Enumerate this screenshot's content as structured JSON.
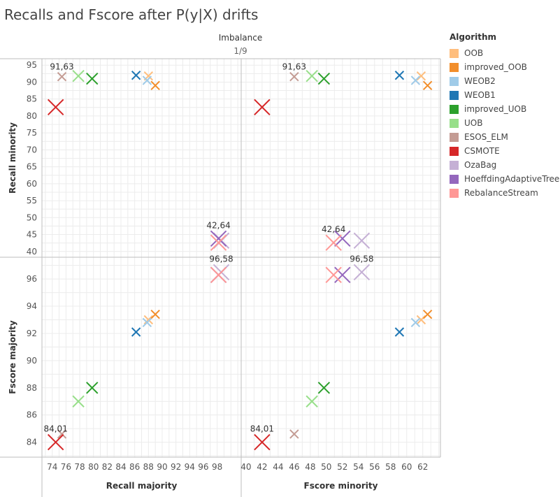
{
  "title": "Recalls and Fscore after P(y|X) drifts",
  "column_header": "Imbalance",
  "column_value": "1/9",
  "legend": {
    "title": "Algorithm",
    "items": [
      {
        "name": "OOB",
        "color": "#ffbe7d"
      },
      {
        "name": "improved_OOB",
        "color": "#f28e2b"
      },
      {
        "name": "WEOB2",
        "color": "#a0cbe8"
      },
      {
        "name": "WEOB1",
        "color": "#1f77b4"
      },
      {
        "name": "improved_UOB",
        "color": "#2ca02c"
      },
      {
        "name": "UOB",
        "color": "#98df8a"
      },
      {
        "name": "ESOS_ELM",
        "color": "#c49c94"
      },
      {
        "name": "CSMOTE",
        "color": "#d62728"
      },
      {
        "name": "OzaBag",
        "color": "#c5b0d5"
      },
      {
        "name": "HoeffdingAdaptiveTree",
        "color": "#9467bd"
      },
      {
        "name": "RebalanceStream",
        "color": "#ff9896"
      }
    ]
  },
  "chart_data": {
    "type": "scatter",
    "x_measures": [
      {
        "key": "recall_majority",
        "label": "Recall majority",
        "range": [
          72.5,
          101.5
        ],
        "ticks": [
          74,
          76,
          78,
          80,
          82,
          84,
          86,
          88,
          90,
          92,
          94,
          96,
          98
        ]
      },
      {
        "key": "fscore_minority",
        "label": "Fscore minority",
        "range": [
          39.4,
          64.2
        ],
        "ticks": [
          40,
          42,
          44,
          46,
          48,
          50,
          52,
          54,
          56,
          58,
          60,
          62
        ]
      }
    ],
    "y_measures": [
      {
        "key": "recall_minority",
        "label": "Recall minority",
        "range": [
          38.3,
          96.9
        ],
        "ticks": [
          40,
          45,
          50,
          55,
          60,
          65,
          70,
          75,
          80,
          85,
          90,
          95
        ]
      },
      {
        "key": "fscore_majority",
        "label": "Fscore majority",
        "range": [
          82.9,
          97.6
        ],
        "ticks": [
          84,
          86,
          88,
          90,
          92,
          94,
          96
        ]
      }
    ],
    "annotations": [
      {
        "x_measure": "recall_majority",
        "y_measure": "recall_minority",
        "text": "91,63",
        "at_algorithm": "ESOS_ELM"
      },
      {
        "x_measure": "fscore_minority",
        "y_measure": "recall_minority",
        "text": "91,63",
        "at_algorithm": "ESOS_ELM"
      },
      {
        "x_measure": "recall_majority",
        "y_measure": "recall_minority",
        "text": "42,64",
        "at_algorithm": "HoeffdingAdaptiveTree"
      },
      {
        "x_measure": "fscore_minority",
        "y_measure": "recall_minority",
        "text": "42,64",
        "at_algorithm": "RebalanceStream"
      },
      {
        "x_measure": "recall_majority",
        "y_measure": "fscore_majority",
        "text": "96,58",
        "at_algorithm": "OzaBag"
      },
      {
        "x_measure": "fscore_minority",
        "y_measure": "fscore_majority",
        "text": "96,58",
        "at_algorithm": "OzaBag"
      },
      {
        "x_measure": "recall_majority",
        "y_measure": "fscore_majority",
        "text": "84,01",
        "at_algorithm": "CSMOTE"
      },
      {
        "x_measure": "fscore_minority",
        "y_measure": "fscore_majority",
        "text": "84,01",
        "at_algorithm": "CSMOTE"
      }
    ],
    "points": [
      {
        "algorithm": "OOB",
        "recall_majority": 88.0,
        "recall_minority": 91.8,
        "fscore_minority": 61.8,
        "fscore_majority": 93.0,
        "size": "small"
      },
      {
        "algorithm": "improved_OOB",
        "recall_majority": 89.0,
        "recall_minority": 89.0,
        "fscore_minority": 62.6,
        "fscore_majority": 93.4,
        "size": "small"
      },
      {
        "algorithm": "WEOB2",
        "recall_majority": 87.8,
        "recall_minority": 90.5,
        "fscore_minority": 61.1,
        "fscore_majority": 92.8,
        "size": "small"
      },
      {
        "algorithm": "WEOB1",
        "recall_majority": 86.2,
        "recall_minority": 92.0,
        "fscore_minority": 59.1,
        "fscore_majority": 92.1,
        "size": "small"
      },
      {
        "algorithm": "improved_UOB",
        "recall_majority": 79.8,
        "recall_minority": 91.0,
        "fscore_minority": 49.7,
        "fscore_majority": 88.0,
        "size": "medium"
      },
      {
        "algorithm": "UOB",
        "recall_majority": 77.8,
        "recall_minority": 91.8,
        "fscore_minority": 48.2,
        "fscore_majority": 87.0,
        "size": "medium"
      },
      {
        "algorithm": "ESOS_ELM",
        "recall_majority": 75.4,
        "recall_minority": 91.6,
        "fscore_minority": 46.0,
        "fscore_majority": 84.6,
        "size": "small"
      },
      {
        "algorithm": "CSMOTE",
        "recall_majority": 74.5,
        "recall_minority": 82.6,
        "fscore_minority": 42.0,
        "fscore_majority": 84.0,
        "size": "large"
      },
      {
        "algorithm": "OzaBag",
        "recall_majority": 98.6,
        "recall_minority": 43.2,
        "fscore_minority": 54.4,
        "fscore_majority": 96.5,
        "size": "large"
      },
      {
        "algorithm": "HoeffdingAdaptiveTree",
        "recall_majority": 98.2,
        "recall_minority": 43.8,
        "fscore_minority": 52.0,
        "fscore_majority": 96.3,
        "size": "large"
      },
      {
        "algorithm": "RebalanceStream",
        "recall_majority": 98.2,
        "recall_minority": 42.6,
        "fscore_minority": 50.9,
        "fscore_majority": 96.3,
        "size": "large"
      }
    ]
  }
}
